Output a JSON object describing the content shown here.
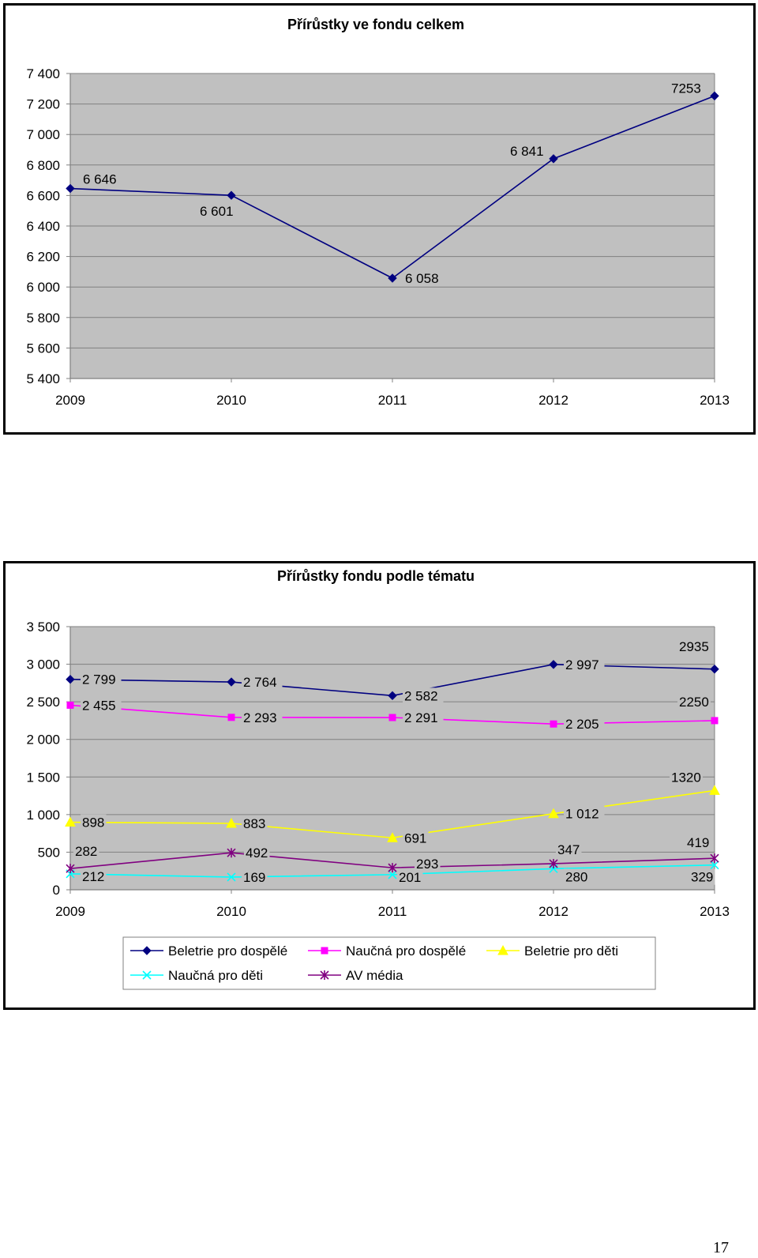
{
  "chart_data": [
    {
      "type": "line",
      "title": "Přírůstky ve fondu celkem",
      "categories": [
        "2009",
        "2010",
        "2011",
        "2012",
        "2013"
      ],
      "series": [
        {
          "values": [
            6646,
            6601,
            6058,
            6841,
            7253
          ],
          "labels": [
            "6 646",
            "6 601",
            "6 058",
            "6 841",
            "7253"
          ],
          "color": "#000080",
          "marker": "diamond"
        }
      ],
      "ylim": [
        5400,
        7400
      ],
      "yticks": [
        "5 400",
        "5 600",
        "5 800",
        "6 000",
        "6 200",
        "6 400",
        "6 600",
        "6 800",
        "7 000",
        "7 200",
        "7 400"
      ],
      "plot_background": "#c0c0c0",
      "grid": true,
      "legend": "none"
    },
    {
      "type": "line",
      "title": "Přírůstky fondu podle tématu",
      "categories": [
        "2009",
        "2010",
        "2011",
        "2012",
        "2013"
      ],
      "series": [
        {
          "name": "Beletrie pro dospělé",
          "values": [
            2799,
            2764,
            2582,
            2997,
            2935
          ],
          "labels": [
            "2 799",
            "2 764",
            "2 582",
            "2 997",
            "2935"
          ],
          "color": "#000080",
          "marker": "diamond"
        },
        {
          "name": "Naučná pro dospělé",
          "values": [
            2455,
            2293,
            2291,
            2205,
            2250
          ],
          "labels": [
            "2 455",
            "2 293",
            "2 291",
            "2 205",
            "2250"
          ],
          "color": "#ff00ff",
          "marker": "square"
        },
        {
          "name": "Beletrie pro děti",
          "values": [
            898,
            883,
            691,
            1012,
            1320
          ],
          "labels": [
            "898",
            "883",
            "691",
            "1 012",
            "1320"
          ],
          "color": "#ffff00",
          "marker": "triangle"
        },
        {
          "name": "Naučná pro děti",
          "values": [
            212,
            169,
            201,
            280,
            329
          ],
          "labels": [
            "212",
            "169",
            "201",
            "280",
            "329"
          ],
          "color": "#00ffff",
          "marker": "x"
        },
        {
          "name": "AV média",
          "values": [
            282,
            492,
            293,
            347,
            419
          ],
          "labels": [
            "282",
            "492",
            "293",
            "347",
            "419"
          ],
          "color": "#800080",
          "marker": "star"
        }
      ],
      "ylim": [
        0,
        3500
      ],
      "yticks": [
        "0",
        "500",
        "1 000",
        "1 500",
        "2 000",
        "2 500",
        "3 000",
        "3 500"
      ],
      "plot_background": "#c0c0c0",
      "grid": true,
      "legend": "bottom"
    }
  ],
  "page": {
    "number": "17"
  }
}
